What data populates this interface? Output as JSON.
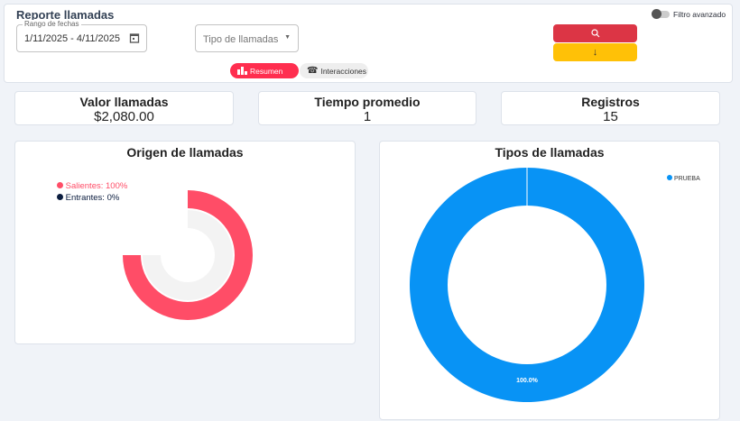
{
  "header": {
    "title": "Reporte llamadas",
    "date_label": "Rango de fechas",
    "date_value": "1/11/2025  - 4/11/2025",
    "type_placeholder": "Tipo de llamadas",
    "toggle_label": "Filtro avanzado",
    "search_icon": "search-icon",
    "download_icon": "arrow-down-icon"
  },
  "tabs": [
    {
      "label": "Resumen",
      "icon": "bar-chart-icon",
      "active": true
    },
    {
      "label": "Interacciones",
      "icon": "phone-icon",
      "active": false
    }
  ],
  "stats": [
    {
      "label": "Valor llamadas",
      "value": "$2,080.00"
    },
    {
      "label": "Tiempo promedio",
      "value": "1"
    },
    {
      "label": "Registros",
      "value": "15"
    }
  ],
  "colors": {
    "red": "#ff4d67",
    "blue": "#0893f5",
    "danger": "#dc3545",
    "warning": "#ffc107"
  },
  "chart_data": [
    {
      "type": "radialBar",
      "title": "Origen de llamadas",
      "series": [
        {
          "name": "Salientes",
          "value": 100,
          "label": "Salientes: 100%",
          "color": "#ff4d67"
        },
        {
          "name": "Entrantes",
          "value": 0,
          "label": "Entrantes: 0%",
          "color": "#0b1d3f"
        }
      ],
      "max_angle": 270,
      "legend": "top-left"
    },
    {
      "type": "pie",
      "title": "Tipos de llamadas",
      "categories": [
        "PRUEBA"
      ],
      "values": [
        100
      ],
      "data_labels": [
        "100.0%"
      ],
      "color": "#0893f5",
      "donut": true,
      "legend": "top-right"
    }
  ]
}
